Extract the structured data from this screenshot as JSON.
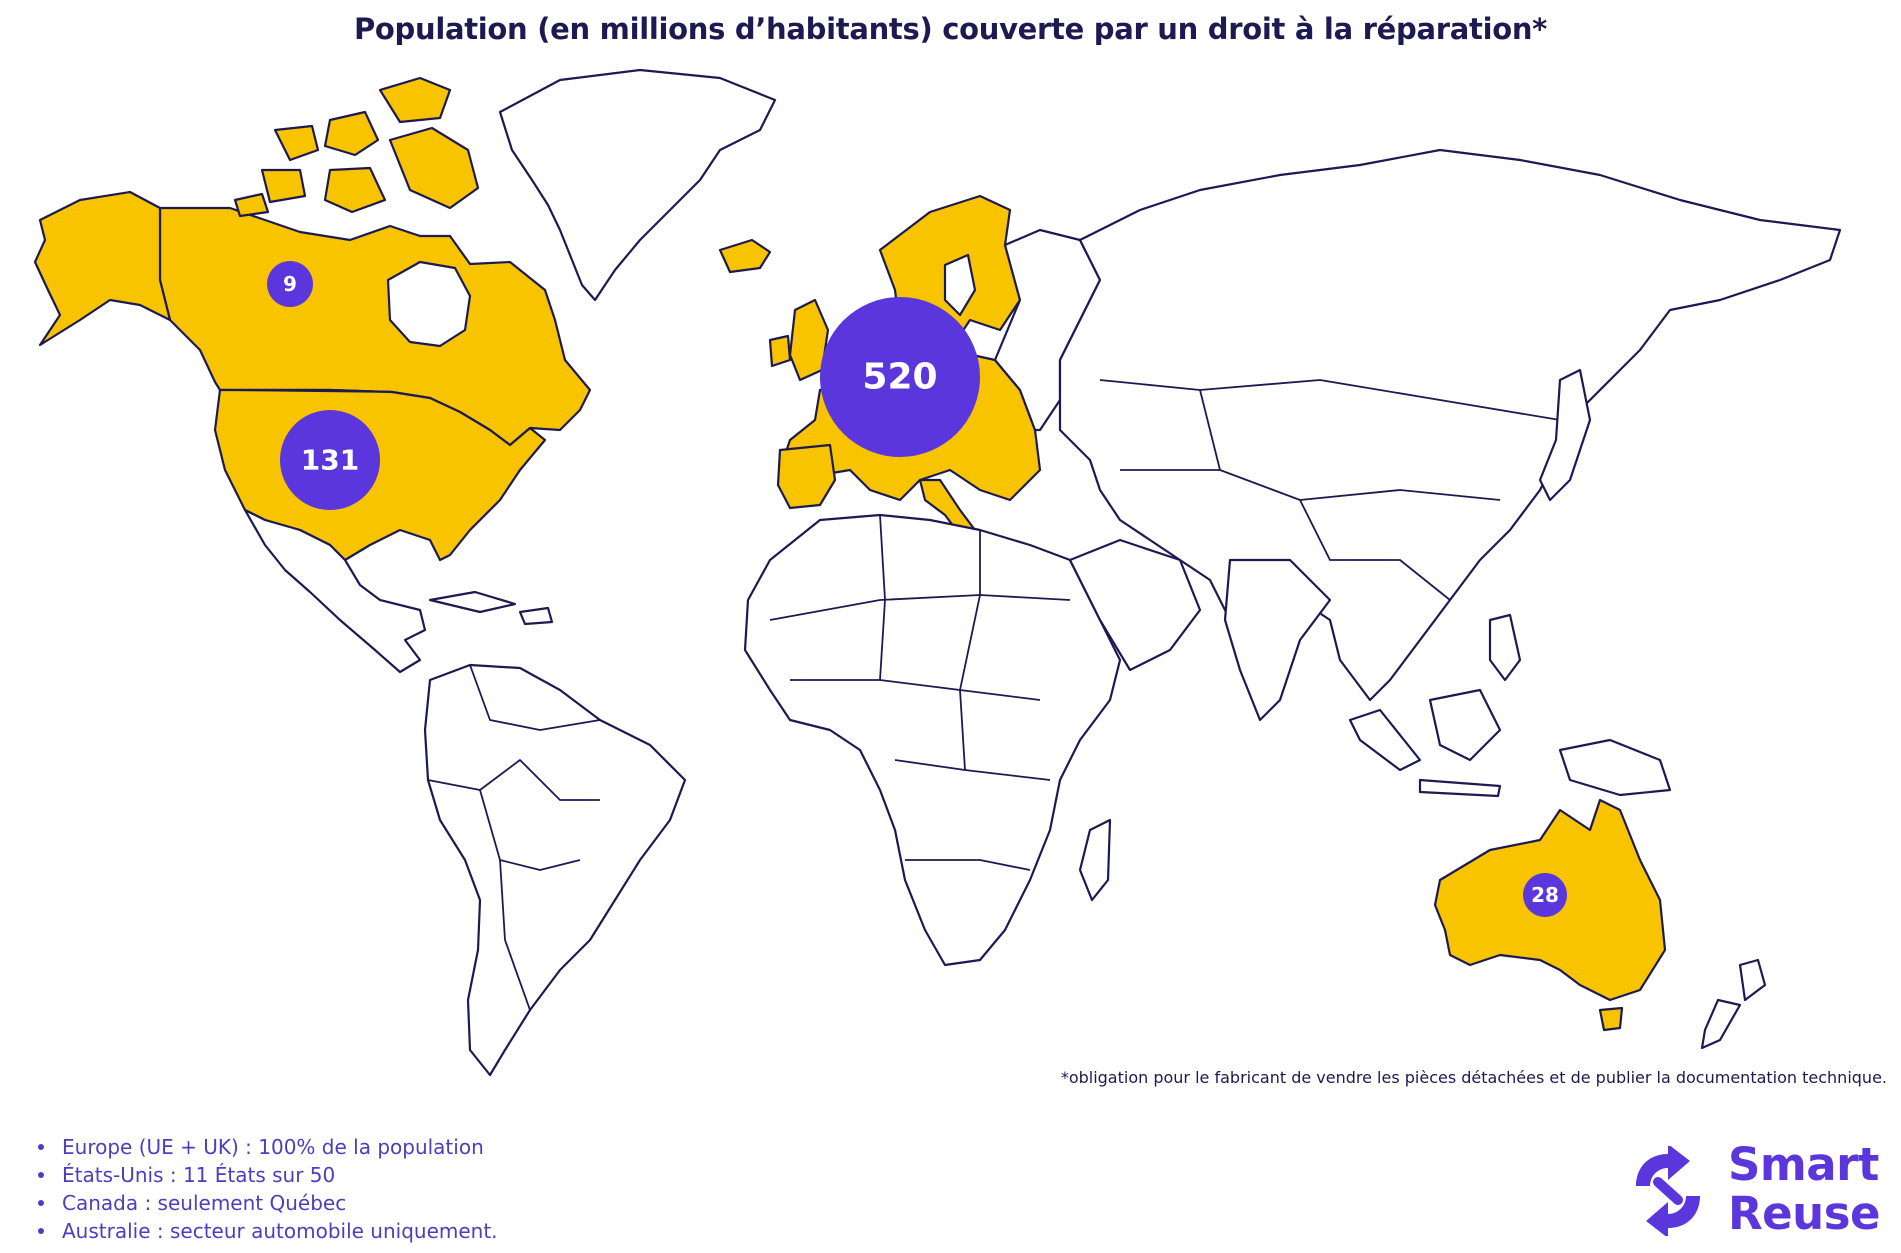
{
  "title": "Population (en millions d’habitants) couverte par un droit à la réparation*",
  "map": {
    "highlight_color": "#f8c400",
    "bubble_color": "#5a36dc",
    "outline_color": "#1d1a52",
    "regions": [
      {
        "id": "canada",
        "label": "9"
      },
      {
        "id": "usa",
        "label": "131"
      },
      {
        "id": "europe",
        "label": "520"
      },
      {
        "id": "australia",
        "label": "28"
      }
    ]
  },
  "footnote": "*obligation pour le fabricant de vendre les pièces détachées et de publier la documentation technique.",
  "notes": [
    "Europe (UE + UK) : 100% de la population",
    "États-Unis : 11 États sur 50",
    "Canada : seulement Québec",
    "Australie : secteur automobile uniquement."
  ],
  "logo": {
    "line1": "Smart",
    "line2": "Reuse",
    "color": "#5a36dc"
  }
}
